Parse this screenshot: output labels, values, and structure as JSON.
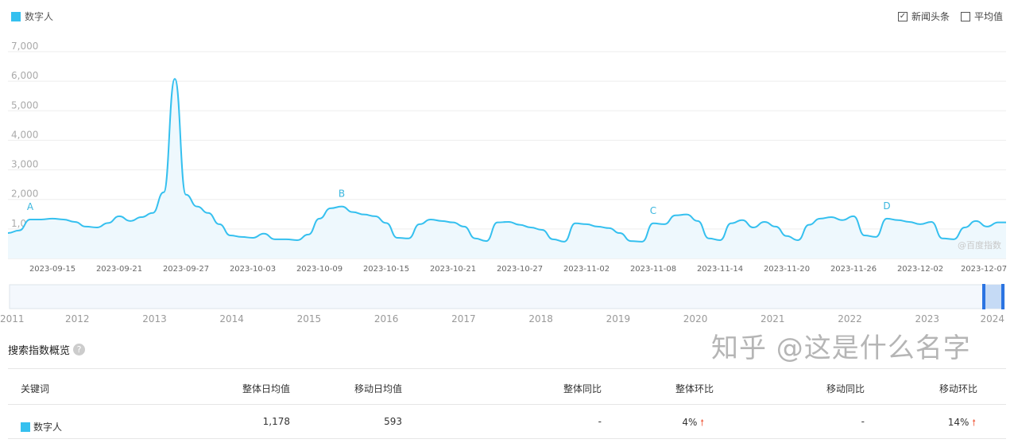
{
  "legend": {
    "label": "数字人",
    "color": "#35c0ef"
  },
  "options": [
    {
      "label": "新闻头条",
      "checked": true
    },
    {
      "label": "平均值",
      "checked": false
    }
  ],
  "watermark_logo": "@百度指数",
  "chart_data": {
    "type": "area",
    "series": [
      {
        "name": "数字人",
        "color": "#35c0ef",
        "start_date": "2023-09-11",
        "values": [
          860,
          950,
          1320,
          1320,
          1350,
          1320,
          1240,
          1080,
          1050,
          1200,
          1430,
          1270,
          1400,
          1540,
          2240,
          6080,
          2160,
          1760,
          1540,
          1160,
          780,
          730,
          700,
          840,
          650,
          650,
          620,
          810,
          1350,
          1700,
          1760,
          1570,
          1490,
          1430,
          1200,
          700,
          680,
          1160,
          1320,
          1270,
          1220,
          1080,
          680,
          590,
          1220,
          1240,
          1140,
          1050,
          970,
          650,
          570,
          1190,
          1160,
          1080,
          1030,
          860,
          590,
          570,
          1190,
          1160,
          1460,
          1490,
          1270,
          680,
          620,
          1190,
          1300,
          1050,
          1240,
          1080,
          760,
          620,
          1140,
          1350,
          1400,
          1300,
          1430,
          780,
          730,
          1350,
          1300,
          1240,
          1160,
          1240,
          680,
          650,
          1050,
          1270,
          1080,
          1220
        ]
      }
    ],
    "ylim": [
      0,
      7000
    ],
    "yticks": [
      "1,000",
      "2,000",
      "3,000",
      "4,000",
      "5,000",
      "6,000",
      "7,000"
    ],
    "xticks": [
      "2023-09-15",
      "2023-09-21",
      "2023-09-27",
      "2023-10-03",
      "2023-10-09",
      "2023-10-15",
      "2023-10-21",
      "2023-10-27",
      "2023-11-02",
      "2023-11-08",
      "2023-11-14",
      "2023-11-20",
      "2023-11-26",
      "2023-12-02",
      "2023-12-07"
    ],
    "annotations": [
      {
        "label": "A",
        "date": "2023-09-13"
      },
      {
        "label": "B",
        "date": "2023-10-11"
      },
      {
        "label": "C",
        "date": "2023-11-08"
      },
      {
        "label": "D",
        "date": "2023-11-29"
      }
    ],
    "grid": true,
    "navigator": {
      "years": [
        "2011",
        "2012",
        "2013",
        "2014",
        "2015",
        "2016",
        "2017",
        "2018",
        "2019",
        "2020",
        "2021",
        "2022",
        "2023",
        "2024"
      ]
    }
  },
  "overview": {
    "title": "搜索指数概览",
    "help_icon": "question-icon",
    "headers": [
      "关键词",
      "整体日均值",
      "移动日均值",
      "整体同比",
      "整体环比",
      "移动同比",
      "移动环比"
    ],
    "rows": [
      {
        "keyword": "数字人",
        "overall_avg": "1,178",
        "mobile_avg": "593",
        "overall_yoy": "-",
        "overall_mom": "4%",
        "mobile_yoy": "-",
        "mobile_mom": "14%"
      }
    ]
  },
  "watermark": "知乎 @这是什么名字"
}
